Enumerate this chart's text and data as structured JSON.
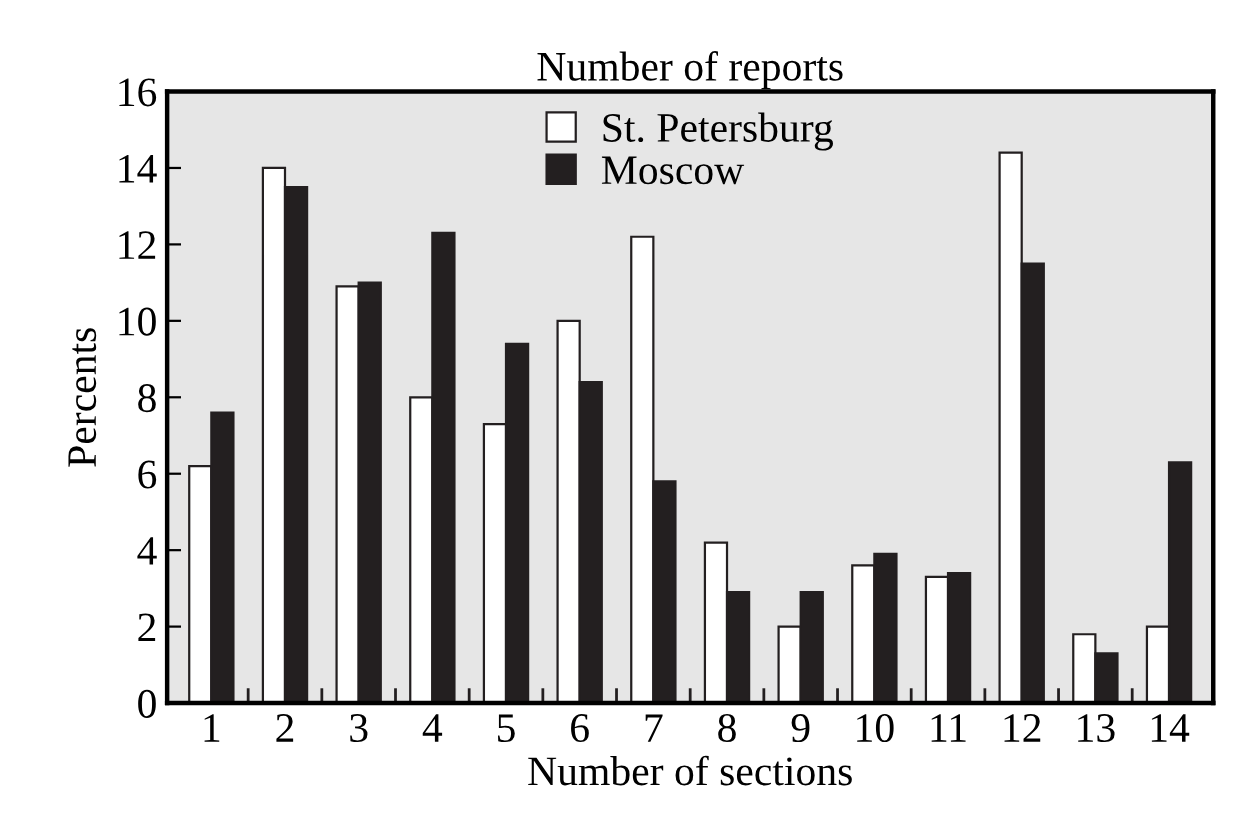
{
  "chart_data": {
    "type": "bar",
    "title": "Number of reports",
    "xlabel": "Number of sections",
    "ylabel": "Percents",
    "categories": [
      "1",
      "2",
      "3",
      "4",
      "5",
      "6",
      "7",
      "8",
      "9",
      "10",
      "11",
      "12",
      "13",
      "14"
    ],
    "series": [
      {
        "name": "St. Petersburg",
        "color": "#ffffff",
        "values": [
          6.2,
          14.0,
          10.9,
          8.0,
          7.3,
          10.0,
          12.2,
          4.2,
          2.0,
          3.6,
          3.3,
          14.4,
          1.8,
          2.0
        ]
      },
      {
        "name": "Moscow",
        "color": "#231f20",
        "values": [
          7.6,
          13.5,
          11.0,
          12.3,
          9.4,
          8.4,
          5.8,
          2.9,
          2.9,
          3.9,
          3.4,
          11.5,
          1.3,
          6.3
        ]
      }
    ],
    "ylim": [
      0,
      16
    ],
    "yticks": [
      0,
      2,
      4,
      6,
      8,
      10,
      12,
      14,
      16
    ],
    "grid": false,
    "legend": "top"
  }
}
